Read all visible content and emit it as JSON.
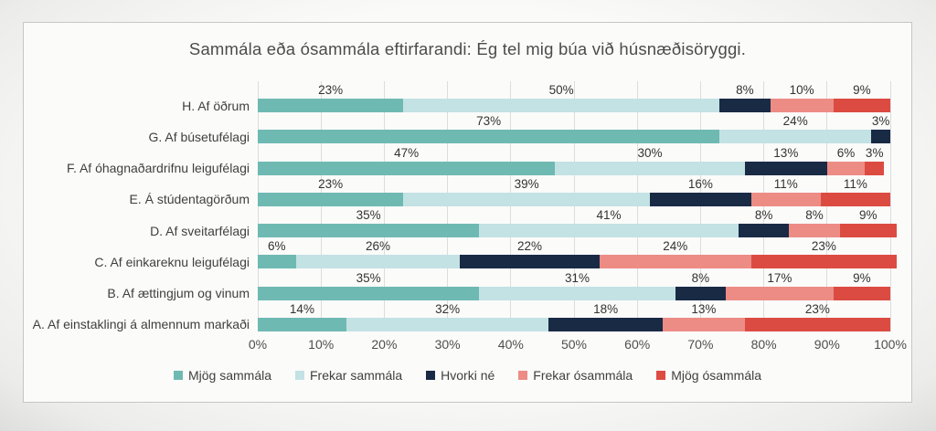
{
  "chart_data": {
    "type": "bar",
    "orientation": "horizontal-stacked",
    "title": "Sammála eða ósammála eftirfarandi: Ég tel mig búa við húsnæðisöryggi.",
    "categories": [
      "H. Af öðrum",
      "G. Af búsetufélagi",
      "F. Af óhagnaðardrifnu leigufélagi",
      "E. Á stúdentagörðum",
      "D. Af sveitarfélagi",
      "C. Af einkareknu leigufélagi",
      "B. Af ættingjum og vinum",
      "A. Af einstaklingi á almennum markaði"
    ],
    "series": [
      {
        "name": "Mjög sammála",
        "color": "#6fb9b3",
        "values": [
          23,
          73,
          47,
          23,
          35,
          6,
          35,
          14
        ]
      },
      {
        "name": "Frekar sammála",
        "color": "#c3e2e4",
        "values": [
          50,
          24,
          30,
          39,
          41,
          26,
          31,
          32
        ]
      },
      {
        "name": "Hvorki né",
        "color": "#192a45",
        "values": [
          8,
          3,
          13,
          16,
          8,
          22,
          8,
          18
        ]
      },
      {
        "name": "Frekar ósammála",
        "color": "#ec8c85",
        "values": [
          10,
          0,
          6,
          11,
          8,
          24,
          17,
          13
        ]
      },
      {
        "name": "Mjög ósammála",
        "color": "#dc4b42",
        "values": [
          9,
          0,
          3,
          11,
          9,
          23,
          9,
          23
        ]
      }
    ],
    "label_format": "percent",
    "x_ticks": [
      "0%",
      "10%",
      "20%",
      "30%",
      "40%",
      "50%",
      "60%",
      "70%",
      "80%",
      "90%",
      "100%"
    ],
    "xlim": [
      0,
      100
    ],
    "grid": "vertical",
    "legend_position": "bottom"
  }
}
